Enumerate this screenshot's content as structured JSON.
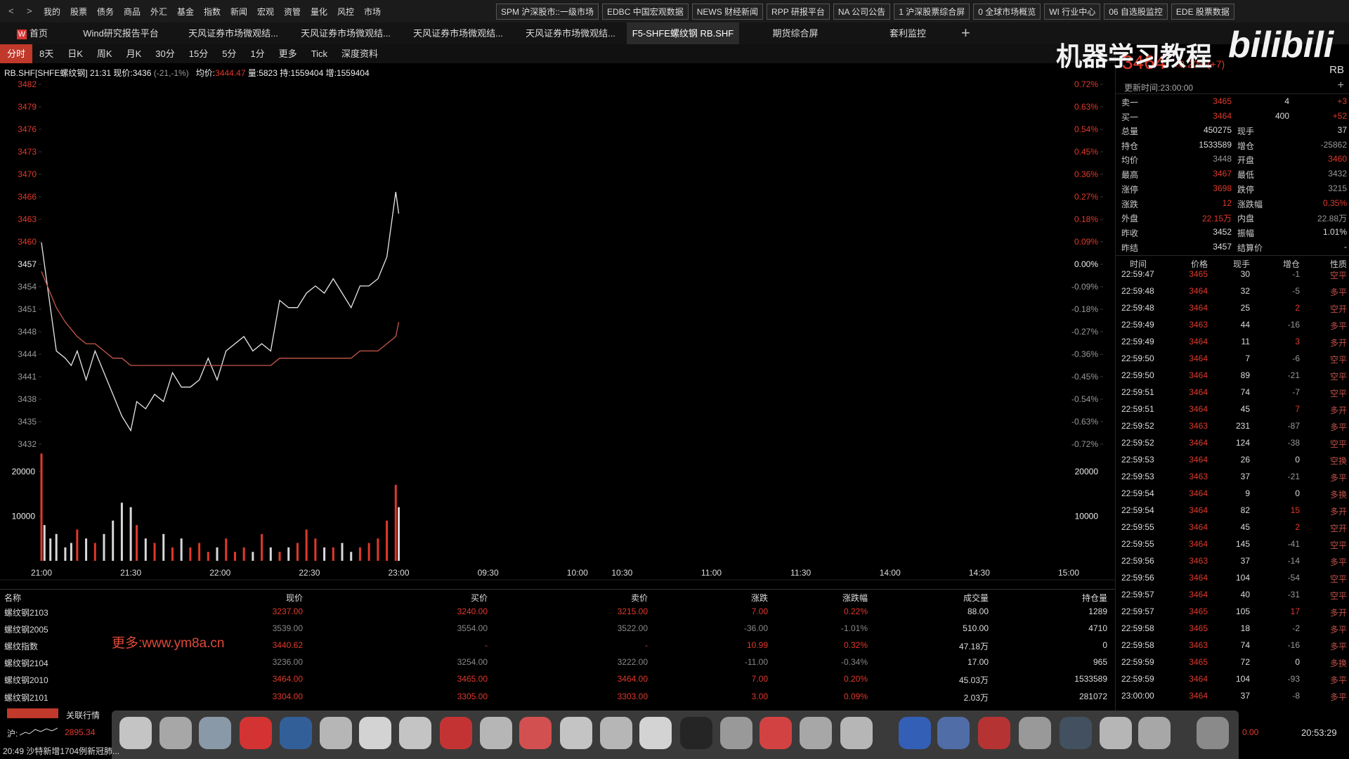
{
  "menu": [
    "我的",
    "股票",
    "债务",
    "商品",
    "外汇",
    "基金",
    "指数",
    "新闻",
    "宏观",
    "资管",
    "量化",
    "风控",
    "市场"
  ],
  "toolbar_buttons": [
    "SPM 沪深股市::一级市场",
    "EDBC 中国宏观数据",
    "NEWS 财经新闻",
    "RPP 研报平台",
    "NA 公司公告",
    "1 沪深股票综合屏",
    "0 全球市场概览",
    "WI 行业中心",
    "06 自选股监控",
    "EDE 股票数据"
  ],
  "tabs": [
    "首页",
    "Wind研究报告平台",
    "天风证券市场微观结...",
    "天风证券市场微观结...",
    "天风证券市场微观结...",
    "天风证券市场微观结...",
    "F5-SHFE螺纹钢 RB.SHF",
    "期货综合屏",
    "套利监控"
  ],
  "periods": [
    "分时",
    "8天",
    "日K",
    "周K",
    "月K",
    "30分",
    "15分",
    "5分",
    "1分",
    "更多",
    "Tick",
    "深度资料"
  ],
  "chart_header": {
    "info": "RB.SHF[SHFE螺纹钢] 21:31 现价:3436",
    "change": "(-21,-1%)",
    "avg_label": "均价:",
    "avg": "3444.47",
    "rest": "量:5823 持:1559404 增:1559404"
  },
  "chart_data": [
    {
      "type": "line",
      "x": [
        "21:00",
        "21:01",
        "21:03",
        "21:05",
        "21:08",
        "21:10",
        "21:12",
        "21:15",
        "21:18",
        "21:21",
        "21:24",
        "21:27",
        "21:30",
        "21:32",
        "21:35",
        "21:38",
        "21:41",
        "21:44",
        "21:47",
        "21:50",
        "21:53",
        "21:56",
        "21:59",
        "22:02",
        "22:05",
        "22:08",
        "22:11",
        "22:14",
        "22:17",
        "22:20",
        "22:23",
        "22:26",
        "22:29",
        "22:32",
        "22:35",
        "22:38",
        "22:41",
        "22:44",
        "22:47",
        "22:50",
        "22:53",
        "22:56",
        "22:59",
        "23:00"
      ],
      "series": [
        {
          "color": "#e8e8e8",
          "values": [
            3460,
            3457,
            3451,
            3445,
            3444,
            3443,
            3445,
            3441,
            3445,
            3442,
            3439,
            3436,
            3434,
            3438,
            3437,
            3439,
            3438,
            3442,
            3440,
            3440,
            3441,
            3444,
            3441,
            3445,
            3446,
            3447,
            3445,
            3446,
            3445,
            3452,
            3451,
            3451,
            3453,
            3454,
            3453,
            3455,
            3453,
            3451,
            3454,
            3454,
            3455,
            3458,
            3467,
            3464
          ]
        },
        {
          "color": "#c8584a",
          "values": [
            3456,
            3455,
            3453,
            3451,
            3449,
            3448,
            3447,
            3446,
            3446,
            3445,
            3444,
            3444,
            3443,
            3443,
            3443,
            3443,
            3443,
            3443,
            3443,
            3443,
            3443,
            3443,
            3443,
            3443,
            3443,
            3443,
            3443,
            3443,
            3443,
            3444,
            3444,
            3444,
            3444,
            3444,
            3444,
            3444,
            3444,
            3444,
            3445,
            3445,
            3445,
            3446,
            3447,
            3449
          ]
        }
      ],
      "ylim": [
        3432.11,
        3481.89
      ],
      "yticks": [
        {
          "value": 3481.89,
          "label": "3482"
        },
        {
          "value": 3478.78,
          "label": "3479"
        },
        {
          "value": 3475.67,
          "label": "3476"
        },
        {
          "value": 3472.56,
          "label": "3473"
        },
        {
          "value": 3469.45,
          "label": "3470"
        },
        {
          "value": 3466.33,
          "label": "3466"
        },
        {
          "value": 3463.22,
          "label": "3463"
        },
        {
          "value": 3460.11,
          "label": "3460"
        },
        {
          "value": 3457,
          "label": "3457"
        },
        {
          "value": 3453.89,
          "label": "3454"
        },
        {
          "value": 3450.78,
          "label": "3451"
        },
        {
          "value": 3447.67,
          "label": "3448"
        },
        {
          "value": 3444.56,
          "label": "3444"
        },
        {
          "value": 3441.44,
          "label": "3441"
        },
        {
          "value": 3438.33,
          "label": "3438"
        },
        {
          "value": 3435.22,
          "label": "3435"
        },
        {
          "value": 3432.11,
          "label": "3432"
        }
      ],
      "y2lim": [
        -0.72,
        0.72
      ],
      "y2ticks": [
        {
          "value": 0.72,
          "label": "0.72%"
        },
        {
          "value": 0.63,
          "label": "0.63%"
        },
        {
          "value": 0.54,
          "label": "0.54%"
        },
        {
          "value": 0.45,
          "label": "0.45%"
        },
        {
          "value": 0.36,
          "label": "0.36%"
        },
        {
          "value": 0.27,
          "label": "0.27%"
        },
        {
          "value": 0.18,
          "label": "0.18%"
        },
        {
          "value": 0.09,
          "label": "0.09%"
        },
        {
          "value": 0,
          "label": "0.00%"
        },
        {
          "value": -0.09,
          "label": "-0.09%"
        },
        {
          "value": -0.18,
          "label": "-0.18%"
        },
        {
          "value": -0.27,
          "label": "-0.27%"
        },
        {
          "value": -0.36,
          "label": "-0.36%"
        },
        {
          "value": -0.45,
          "label": "-0.45%"
        },
        {
          "value": -0.54,
          "label": "-0.54%"
        },
        {
          "value": -0.63,
          "label": "-0.63%"
        },
        {
          "value": -0.72,
          "label": "-0.72%"
        }
      ],
      "xticks": [
        "21:00",
        "21:30",
        "22:00",
        "22:30",
        "23:00",
        "09:30",
        "10:00",
        "10:30",
        "11:00",
        "11:30",
        "14:00",
        "14:30",
        "15:00"
      ]
    },
    {
      "type": "bar",
      "x": [
        "21:00",
        "21:01",
        "21:03",
        "21:05",
        "21:08",
        "21:10",
        "21:12",
        "21:15",
        "21:18",
        "21:21",
        "21:24",
        "21:27",
        "21:30",
        "21:32",
        "21:35",
        "21:38",
        "21:41",
        "21:44",
        "21:47",
        "21:50",
        "21:53",
        "21:56",
        "21:59",
        "22:02",
        "22:05",
        "22:08",
        "22:11",
        "22:14",
        "22:17",
        "22:20",
        "22:23",
        "22:26",
        "22:29",
        "22:32",
        "22:35",
        "22:38",
        "22:41",
        "22:44",
        "22:47",
        "22:50",
        "22:53",
        "22:56",
        "22:59",
        "23:00"
      ],
      "values": [
        24000,
        8000,
        5000,
        6000,
        3000,
        4000,
        7000,
        5000,
        4000,
        6000,
        9000,
        13000,
        12000,
        8000,
        5000,
        4000,
        6000,
        3000,
        5000,
        3000,
        4000,
        2000,
        3000,
        5000,
        2000,
        3000,
        2000,
        6000,
        3000,
        2000,
        3000,
        4000,
        7000,
        5000,
        3000,
        3000,
        4000,
        2000,
        3000,
        4000,
        5000,
        9000,
        17000,
        12000
      ],
      "up_color": "#e0392b",
      "down_color": "#d8d8d8",
      "ylim": [
        0,
        25000
      ],
      "yticks": [
        10000,
        20000
      ]
    }
  ],
  "quote": {
    "price": "3464",
    "change": "+0.20%(+7)",
    "code": "RB",
    "update_time": "更新时间:23:00:00",
    "order_book": [
      [
        "卖一",
        "3465",
        "4",
        "+3"
      ],
      [
        "买一",
        "3464",
        "400",
        "+52"
      ]
    ],
    "stats": [
      [
        "总量",
        "450275",
        "现手",
        "37"
      ],
      [
        "持仓",
        "1533589",
        "增仓",
        "-25862"
      ],
      [
        "均价",
        "3448",
        "开盘",
        "3460"
      ],
      [
        "最高",
        "3467",
        "最低",
        "3432"
      ],
      [
        "涨停",
        "3698",
        "跌停",
        "3215"
      ],
      [
        "涨跌",
        "12",
        "涨跌幅",
        "0.35%"
      ],
      [
        "外盘",
        "22.15万",
        "内盘",
        "22.88万"
      ],
      [
        "昨收",
        "3452",
        "振幅",
        "1.01%"
      ],
      [
        "昨结",
        "3457",
        "结算价",
        "-"
      ]
    ]
  },
  "ticks_table": {
    "header": [
      "时间",
      "价格",
      "现手",
      "增仓",
      "性质"
    ],
    "rows": [
      [
        "22:59:47",
        "3465",
        "30",
        "-1",
        "空平"
      ],
      [
        "22:59:48",
        "3464",
        "32",
        "-5",
        "多平"
      ],
      [
        "22:59:48",
        "3464",
        "25",
        "2",
        "空开"
      ],
      [
        "22:59:49",
        "3463",
        "44",
        "-16",
        "多平"
      ],
      [
        "22:59:49",
        "3464",
        "11",
        "3",
        "多开"
      ],
      [
        "22:59:50",
        "3464",
        "7",
        "-6",
        "空平"
      ],
      [
        "22:59:50",
        "3464",
        "89",
        "-21",
        "空平"
      ],
      [
        "22:59:51",
        "3464",
        "74",
        "-7",
        "空平"
      ],
      [
        "22:59:51",
        "3464",
        "45",
        "7",
        "多开"
      ],
      [
        "22:59:52",
        "3463",
        "231",
        "-87",
        "多平"
      ],
      [
        "22:59:52",
        "3464",
        "124",
        "-38",
        "空平"
      ],
      [
        "22:59:53",
        "3464",
        "26",
        "0",
        "空换"
      ],
      [
        "22:59:53",
        "3463",
        "37",
        "-21",
        "多平"
      ],
      [
        "22:59:54",
        "3464",
        "9",
        "0",
        "多换"
      ],
      [
        "22:59:54",
        "3464",
        "82",
        "15",
        "多开"
      ],
      [
        "22:59:55",
        "3464",
        "45",
        "2",
        "空开"
      ],
      [
        "22:59:55",
        "3464",
        "145",
        "-41",
        "空平"
      ],
      [
        "22:59:56",
        "3463",
        "37",
        "-14",
        "多平"
      ],
      [
        "22:59:56",
        "3464",
        "104",
        "-54",
        "空平"
      ],
      [
        "22:59:57",
        "3464",
        "40",
        "-31",
        "空平"
      ],
      [
        "22:59:57",
        "3465",
        "105",
        "17",
        "多开"
      ],
      [
        "22:59:58",
        "3465",
        "18",
        "-2",
        "多平"
      ],
      [
        "22:59:58",
        "3463",
        "74",
        "-16",
        "多平"
      ],
      [
        "22:59:59",
        "3465",
        "72",
        "0",
        "多换"
      ],
      [
        "22:59:59",
        "3464",
        "104",
        "-93",
        "多平"
      ],
      [
        "23:00:00",
        "3464",
        "37",
        "-8",
        "多平"
      ]
    ]
  },
  "watchlist": {
    "header": [
      "名称",
      "现价",
      "买价",
      "卖价",
      "涨跌",
      "涨跌幅",
      "成交量",
      "持仓量"
    ],
    "rows": [
      [
        "螺纹钢2103",
        "3237.00",
        "3240.00",
        "3215.00",
        "7.00",
        "0.22%",
        "88.00",
        "1289"
      ],
      [
        "螺纹钢2005",
        "3539.00",
        "3554.00",
        "3522.00",
        "-36.00",
        "-1.01%",
        "510.00",
        "4710"
      ],
      [
        "螺纹指数",
        "3440.62",
        "-",
        "-",
        "10.99",
        "0.32%",
        "47.18万",
        "0"
      ],
      [
        "螺纹钢2104",
        "3236.00",
        "3254.00",
        "3222.00",
        "-11.00",
        "-0.34%",
        "17.00",
        "965"
      ],
      [
        "螺纹钢2010",
        "3464.00",
        "3465.00",
        "3464.00",
        "7.00",
        "0.20%",
        "45.03万",
        "1533589"
      ],
      [
        "螺纹钢2101",
        "3304.00",
        "3305.00",
        "3303.00",
        "3.00",
        "0.09%",
        "2.03万",
        "281072"
      ]
    ]
  },
  "watermark": {
    "title": "机器学习教程",
    "logo": "bilibili",
    "url": "更多:www.ym8a.cn"
  },
  "status_bar": {
    "related": "关联行情",
    "index_label": "沪:",
    "index_value": "2895.34",
    "news": "20:49 沙特新增1704例新冠肺...",
    "change": "0.00",
    "clock": "20:53:29"
  }
}
